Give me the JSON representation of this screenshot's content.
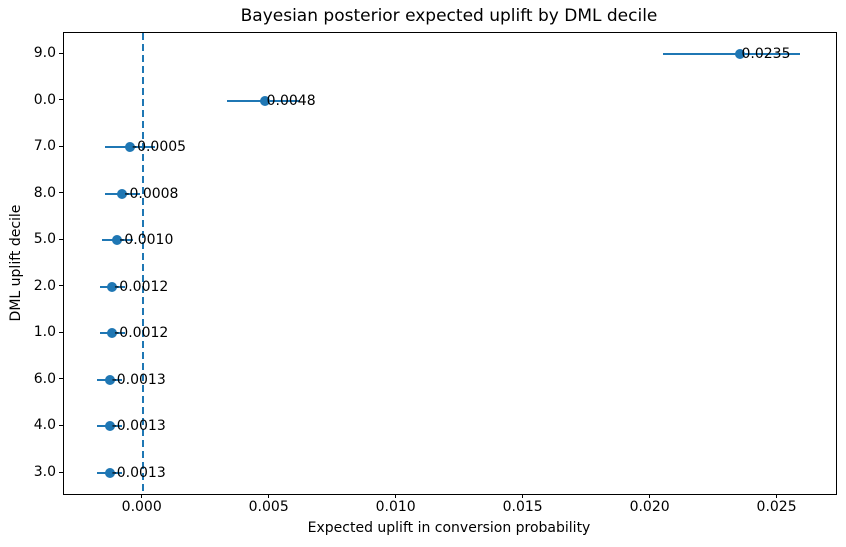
{
  "chart_data": {
    "type": "scatter",
    "title": "Bayesian posterior expected uplift by DML decile",
    "xlabel": "Expected uplift in conversion probability",
    "ylabel": "DML uplift decile",
    "xlim": [
      -0.0031,
      0.0273
    ],
    "grid": false,
    "legend": "none",
    "zero_reference_line": {
      "x": 0.0,
      "style": "dashed",
      "color": "#1f77b4"
    },
    "colors": {
      "series": "#1f77b4",
      "text": "#000000",
      "spine": "#000000"
    },
    "xticks": [
      {
        "value": 0.0,
        "label": "0.000"
      },
      {
        "value": 0.005,
        "label": "0.005"
      },
      {
        "value": 0.01,
        "label": "0.010"
      },
      {
        "value": 0.015,
        "label": "0.015"
      },
      {
        "value": 0.02,
        "label": "0.020"
      },
      {
        "value": 0.025,
        "label": "0.025"
      }
    ],
    "categories_top_to_bottom": [
      "9.0",
      "0.0",
      "7.0",
      "8.0",
      "5.0",
      "2.0",
      "1.0",
      "6.0",
      "4.0",
      "3.0"
    ],
    "points": [
      {
        "decile": "9.0",
        "mean": 0.0235,
        "ci_lo": 0.0205,
        "ci_hi": 0.0259,
        "label": "0.0235"
      },
      {
        "decile": "0.0",
        "mean": 0.0048,
        "ci_lo": 0.0033,
        "ci_hi": 0.0062,
        "label": "0.0048"
      },
      {
        "decile": "7.0",
        "mean": -0.0005,
        "ci_lo": -0.0015,
        "ci_hi": 0.0005,
        "label": "-0.0005"
      },
      {
        "decile": "8.0",
        "mean": -0.0008,
        "ci_lo": -0.0015,
        "ci_hi": -0.0001,
        "label": "-0.0008"
      },
      {
        "decile": "5.0",
        "mean": -0.001,
        "ci_lo": -0.0016,
        "ci_hi": -0.0004,
        "label": "-0.0010"
      },
      {
        "decile": "2.0",
        "mean": -0.0012,
        "ci_lo": -0.0017,
        "ci_hi": -0.0007,
        "label": "-0.0012"
      },
      {
        "decile": "1.0",
        "mean": -0.0012,
        "ci_lo": -0.0017,
        "ci_hi": -0.0007,
        "label": "-0.0012"
      },
      {
        "decile": "6.0",
        "mean": -0.0013,
        "ci_lo": -0.0018,
        "ci_hi": -0.0008,
        "label": "-0.0013"
      },
      {
        "decile": "4.0",
        "mean": -0.0013,
        "ci_lo": -0.0018,
        "ci_hi": -0.0008,
        "label": "-0.0013"
      },
      {
        "decile": "3.0",
        "mean": -0.0013,
        "ci_lo": -0.0018,
        "ci_hi": -0.0008,
        "label": "-0.0013"
      }
    ]
  }
}
